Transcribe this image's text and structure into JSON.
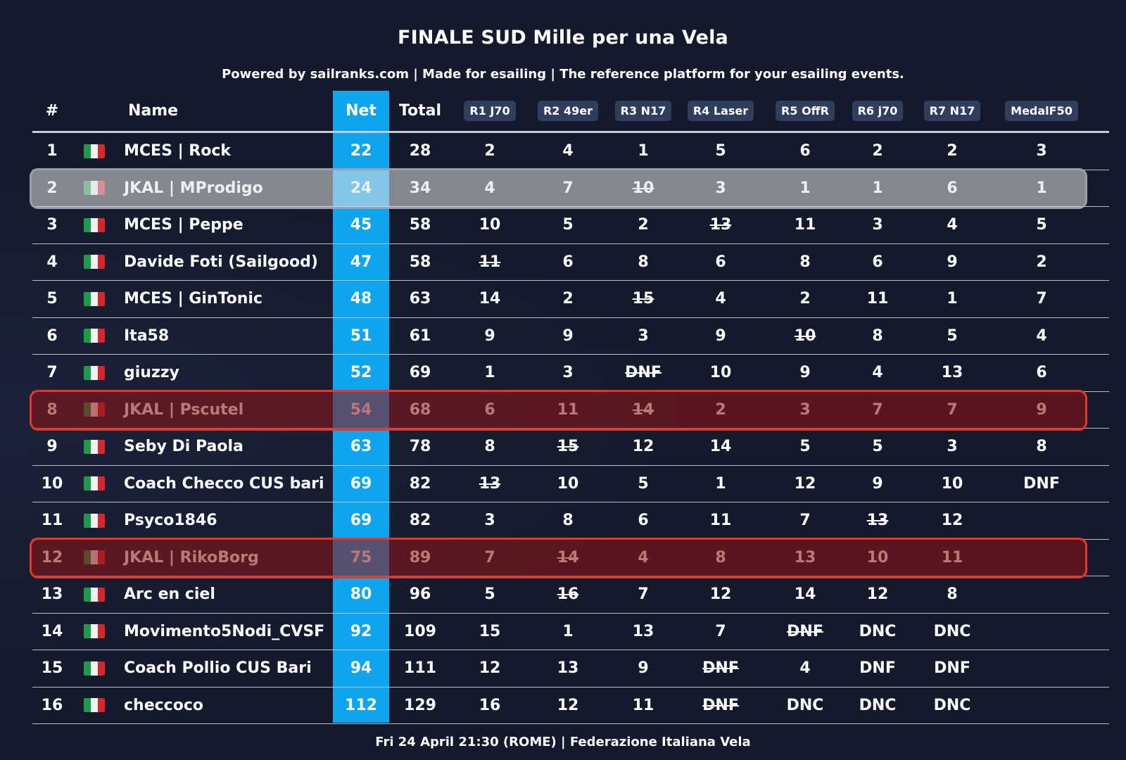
{
  "title": "FINALE SUD Mille per una Vela",
  "subtitle": "Powered by sailranks.com | Made for esailing | The reference platform for your esailing events.",
  "footer": "Fri 24 April 21:30 (ROME) | Federazione Italiana Vela",
  "colors": {
    "background": "#141a2c",
    "net_column": "#0ea5ee",
    "race_badge": "#2f3e5c",
    "highlight_grey": "#9aa0aa",
    "highlight_red": "#e6382a"
  },
  "flag_icon": "italy-flag-icon",
  "headers": {
    "rank": "#",
    "name": "Name",
    "net": "Net",
    "total": "Total",
    "races": [
      "R1 J70",
      "R2 49er",
      "R3 N17",
      "R4 Laser",
      "R5 OffR",
      "R6 j70",
      "R7 N17",
      "MedalF50"
    ]
  },
  "highlights": [
    {
      "row": 2,
      "style": "grey"
    },
    {
      "row": 8,
      "style": "red"
    },
    {
      "row": 12,
      "style": "red"
    }
  ],
  "rows": [
    {
      "rank": "1",
      "name": "MCES | Rock",
      "net": "22",
      "total": "28",
      "races": [
        {
          "v": "2"
        },
        {
          "v": "4"
        },
        {
          "v": "1"
        },
        {
          "v": "5"
        },
        {
          "v": "6"
        },
        {
          "v": "2"
        },
        {
          "v": "2"
        },
        {
          "v": "3"
        }
      ]
    },
    {
      "rank": "2",
      "name": "JKAL | MProdigo",
      "net": "24",
      "total": "34",
      "races": [
        {
          "v": "4"
        },
        {
          "v": "7"
        },
        {
          "v": "10",
          "d": true
        },
        {
          "v": "3"
        },
        {
          "v": "1"
        },
        {
          "v": "1"
        },
        {
          "v": "6"
        },
        {
          "v": "1"
        }
      ]
    },
    {
      "rank": "3",
      "name": "MCES | Peppe",
      "net": "45",
      "total": "58",
      "races": [
        {
          "v": "10"
        },
        {
          "v": "5"
        },
        {
          "v": "2"
        },
        {
          "v": "13",
          "d": true
        },
        {
          "v": "11"
        },
        {
          "v": "3"
        },
        {
          "v": "4"
        },
        {
          "v": "5"
        }
      ]
    },
    {
      "rank": "4",
      "name": "Davide Foti (Sailgood)",
      "net": "47",
      "total": "58",
      "races": [
        {
          "v": "11",
          "d": true
        },
        {
          "v": "6"
        },
        {
          "v": "8"
        },
        {
          "v": "6"
        },
        {
          "v": "8"
        },
        {
          "v": "6"
        },
        {
          "v": "9"
        },
        {
          "v": "2"
        }
      ]
    },
    {
      "rank": "5",
      "name": "MCES | GinTonic",
      "net": "48",
      "total": "63",
      "races": [
        {
          "v": "14"
        },
        {
          "v": "2"
        },
        {
          "v": "15",
          "d": true
        },
        {
          "v": "4"
        },
        {
          "v": "2"
        },
        {
          "v": "11"
        },
        {
          "v": "1"
        },
        {
          "v": "7"
        }
      ]
    },
    {
      "rank": "6",
      "name": "Ita58",
      "net": "51",
      "total": "61",
      "races": [
        {
          "v": "9"
        },
        {
          "v": "9"
        },
        {
          "v": "3"
        },
        {
          "v": "9"
        },
        {
          "v": "10",
          "d": true
        },
        {
          "v": "8"
        },
        {
          "v": "5"
        },
        {
          "v": "4"
        }
      ]
    },
    {
      "rank": "7",
      "name": "giuzzy",
      "net": "52",
      "total": "69",
      "races": [
        {
          "v": "1"
        },
        {
          "v": "3"
        },
        {
          "v": "DNF",
          "d": true
        },
        {
          "v": "10"
        },
        {
          "v": "9"
        },
        {
          "v": "4"
        },
        {
          "v": "13"
        },
        {
          "v": "6"
        }
      ]
    },
    {
      "rank": "8",
      "name": "JKAL | Pscutel",
      "net": "54",
      "total": "68",
      "races": [
        {
          "v": "6"
        },
        {
          "v": "11"
        },
        {
          "v": "14",
          "d": true
        },
        {
          "v": "2"
        },
        {
          "v": "3"
        },
        {
          "v": "7"
        },
        {
          "v": "7"
        },
        {
          "v": "9"
        }
      ]
    },
    {
      "rank": "9",
      "name": "Seby Di Paola",
      "net": "63",
      "total": "78",
      "races": [
        {
          "v": "8"
        },
        {
          "v": "15",
          "d": true
        },
        {
          "v": "12"
        },
        {
          "v": "14"
        },
        {
          "v": "5"
        },
        {
          "v": "5"
        },
        {
          "v": "3"
        },
        {
          "v": "8"
        }
      ]
    },
    {
      "rank": "10",
      "name": "Coach Checco CUS bari",
      "net": "69",
      "total": "82",
      "races": [
        {
          "v": "13",
          "d": true
        },
        {
          "v": "10"
        },
        {
          "v": "5"
        },
        {
          "v": "1"
        },
        {
          "v": "12"
        },
        {
          "v": "9"
        },
        {
          "v": "10"
        },
        {
          "v": "DNF"
        }
      ]
    },
    {
      "rank": "11",
      "name": "Psyco1846",
      "net": "69",
      "total": "82",
      "races": [
        {
          "v": "3"
        },
        {
          "v": "8"
        },
        {
          "v": "6"
        },
        {
          "v": "11"
        },
        {
          "v": "7"
        },
        {
          "v": "13",
          "d": true
        },
        {
          "v": "12"
        },
        {
          "v": ""
        }
      ]
    },
    {
      "rank": "12",
      "name": "JKAL | RikoBorg",
      "net": "75",
      "total": "89",
      "races": [
        {
          "v": "7"
        },
        {
          "v": "14",
          "d": true
        },
        {
          "v": "4"
        },
        {
          "v": "8"
        },
        {
          "v": "13"
        },
        {
          "v": "10"
        },
        {
          "v": "11"
        },
        {
          "v": ""
        }
      ]
    },
    {
      "rank": "13",
      "name": "Arc en ciel",
      "net": "80",
      "total": "96",
      "races": [
        {
          "v": "5"
        },
        {
          "v": "16",
          "d": true
        },
        {
          "v": "7"
        },
        {
          "v": "12"
        },
        {
          "v": "14"
        },
        {
          "v": "12"
        },
        {
          "v": "8"
        },
        {
          "v": ""
        }
      ]
    },
    {
      "rank": "14",
      "name": "Movimento5Nodi_CVSF",
      "net": "92",
      "total": "109",
      "races": [
        {
          "v": "15"
        },
        {
          "v": "1"
        },
        {
          "v": "13"
        },
        {
          "v": "7"
        },
        {
          "v": "DNF",
          "d": true
        },
        {
          "v": "DNC"
        },
        {
          "v": "DNC"
        },
        {
          "v": ""
        }
      ]
    },
    {
      "rank": "15",
      "name": "Coach Pollio CUS Bari",
      "net": "94",
      "total": "111",
      "races": [
        {
          "v": "12"
        },
        {
          "v": "13"
        },
        {
          "v": "9"
        },
        {
          "v": "DNF",
          "d": true
        },
        {
          "v": "4"
        },
        {
          "v": "DNF"
        },
        {
          "v": "DNF"
        },
        {
          "v": ""
        }
      ]
    },
    {
      "rank": "16",
      "name": "checcoco",
      "net": "112",
      "total": "129",
      "races": [
        {
          "v": "16"
        },
        {
          "v": "12"
        },
        {
          "v": "11"
        },
        {
          "v": "DNF",
          "d": true
        },
        {
          "v": "DNC"
        },
        {
          "v": "DNC"
        },
        {
          "v": "DNC"
        },
        {
          "v": ""
        }
      ]
    }
  ]
}
